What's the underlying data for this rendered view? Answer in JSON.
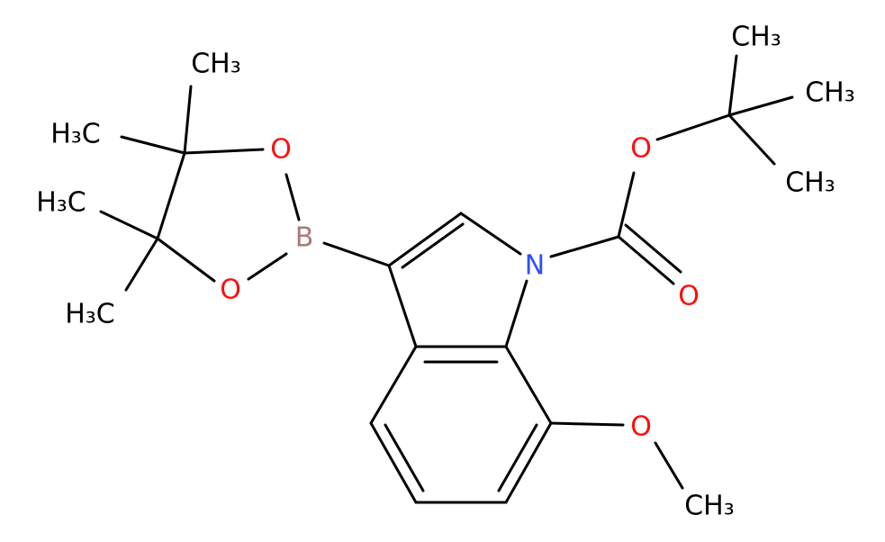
{
  "atoms": [
    {
      "label": "CH₃"
    },
    {
      "label": "CH₃"
    },
    {
      "label": "CH₃"
    },
    {
      "label": "O"
    },
    {
      "label": "N"
    },
    {
      "label": "O"
    },
    {
      "label": "O"
    },
    {
      "label": "CH₃"
    },
    {
      "label": "B"
    },
    {
      "label": "O"
    },
    {
      "label": "O"
    },
    {
      "label": "CH₃"
    },
    {
      "label": "H₃C"
    },
    {
      "label": "H₃C"
    },
    {
      "label": "H₃C"
    }
  ]
}
